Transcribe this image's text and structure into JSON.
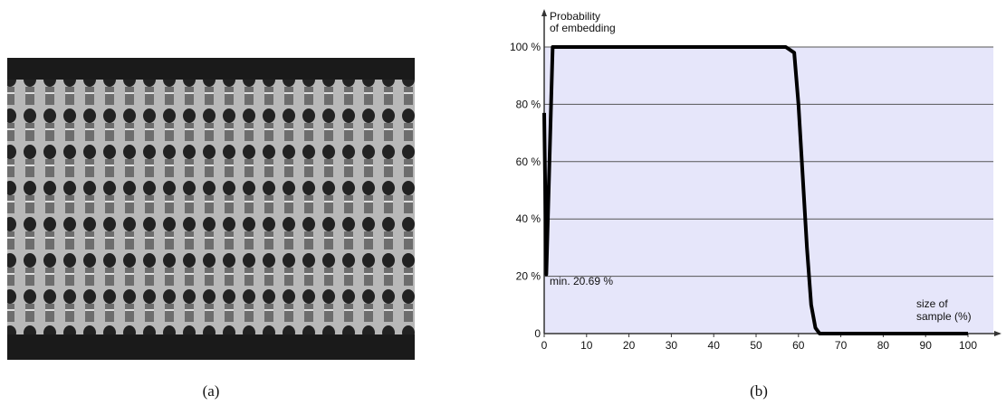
{
  "chart_data": {
    "type": "line",
    "y_label": [
      "Probability",
      "of embedding"
    ],
    "x_label": [
      "size of",
      "sample (%)"
    ],
    "annotation": "min. 20.69 %",
    "x": [
      0,
      0.5,
      2,
      57,
      59,
      60,
      61,
      62,
      63,
      64,
      65,
      70,
      100
    ],
    "series": [
      {
        "color": "#000000",
        "values": [
          77,
          20.69,
          100,
          100,
          98,
          80,
          55,
          30,
          10,
          2,
          0,
          0,
          0
        ]
      }
    ],
    "xlim": [
      0,
      106
    ],
    "ylim": [
      0,
      100
    ],
    "xticks": [
      0,
      10,
      20,
      30,
      40,
      50,
      60,
      70,
      80,
      90,
      100
    ],
    "yticks": [
      {
        "value": 0,
        "label": "0"
      },
      {
        "value": 20,
        "label": "20 %"
      },
      {
        "value": 40,
        "label": "40 %"
      },
      {
        "value": 60,
        "label": "60 %"
      },
      {
        "value": 80,
        "label": "80 %"
      },
      {
        "value": 100,
        "label": "100 %"
      }
    ],
    "grid": true,
    "plot_background": "#e6e6fa"
  },
  "captions": [
    "(a)",
    "(b)"
  ]
}
